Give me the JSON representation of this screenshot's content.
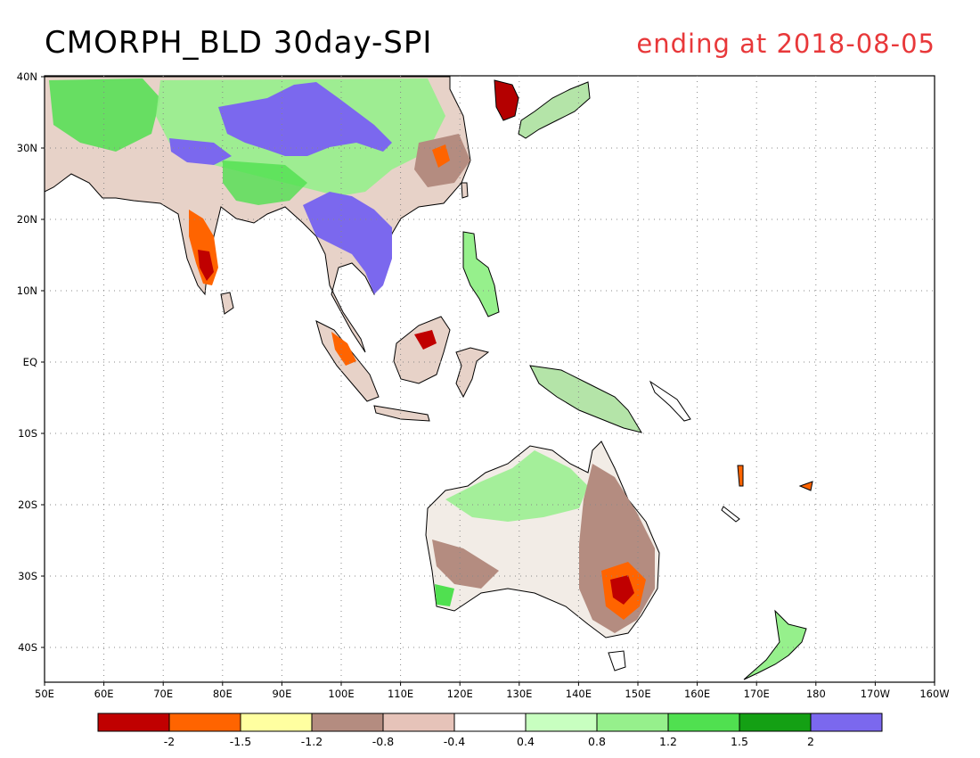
{
  "map": {
    "title": "CMORPH_BLD 30day-SPI",
    "subtitle": "ending at 2018-08-05",
    "subtitle_color": "#e8383a",
    "lon_labels": [
      "50E",
      "60E",
      "70E",
      "80E",
      "90E",
      "100E",
      "110E",
      "120E",
      "130E",
      "140E",
      "150E",
      "160E",
      "170E",
      "180",
      "170W",
      "160W"
    ],
    "lat_labels": [
      "40N",
      "30N",
      "20N",
      "10N",
      "EQ",
      "10S",
      "20S",
      "30S",
      "40S"
    ],
    "grid": "dotted"
  },
  "legend": {
    "colors": [
      "#c00000",
      "#ff6400",
      "#ffffa0",
      "#b48c80",
      "#e6c3b9",
      "#ffffff",
      "#c8ffc0",
      "#96f08c",
      "#50e050",
      "#14a014",
      "#7b68ee"
    ],
    "labels": [
      "-2",
      "-1.5",
      "-1.2",
      "-0.8",
      "-0.4",
      "0.4",
      "0.8",
      "1.2",
      "1.5",
      "2"
    ]
  }
}
